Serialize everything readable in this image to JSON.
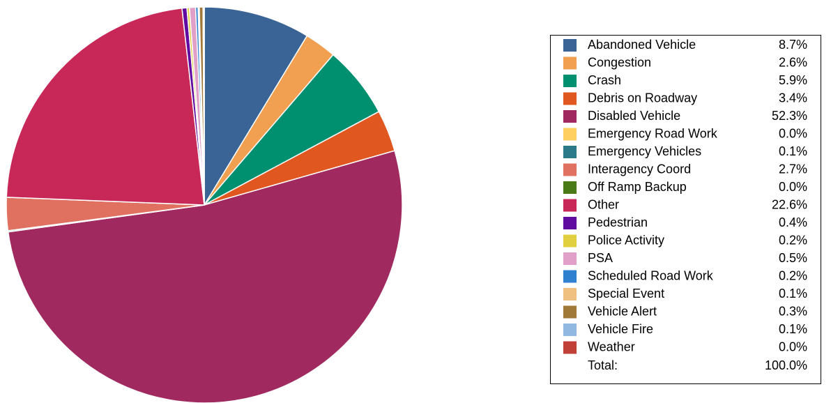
{
  "chart_data": {
    "type": "pie",
    "categories": [
      "Abandoned Vehicle",
      "Congestion",
      "Crash",
      "Debris on Roadway",
      "Disabled Vehicle",
      "Emergency Road Work",
      "Emergency Vehicles",
      "Interagency Coord",
      "Off Ramp Backup",
      "Other",
      "Pedestrian",
      "Police Activity",
      "PSA",
      "Scheduled Road Work",
      "Special Event",
      "Vehicle Alert",
      "Vehicle Fire",
      "Weather"
    ],
    "values": [
      8.7,
      2.6,
      5.9,
      3.4,
      52.3,
      0.0,
      0.1,
      2.7,
      0.0,
      22.6,
      0.4,
      0.2,
      0.5,
      0.2,
      0.1,
      0.3,
      0.1,
      0.0
    ],
    "value_labels": [
      "8.7%",
      "2.6%",
      "5.9%",
      "3.4%",
      "52.3%",
      "0.0%",
      "0.1%",
      "2.7%",
      "0.0%",
      "22.6%",
      "0.4%",
      "0.2%",
      "0.5%",
      "0.2%",
      "0.1%",
      "0.3%",
      "0.1%",
      "0.0%"
    ],
    "colors": [
      "#3a6496",
      "#f0a050",
      "#009070",
      "#e05820",
      "#a02a60",
      "#ffd060",
      "#2a7a8a",
      "#e07060",
      "#4a7a18",
      "#c82858",
      "#600ca0",
      "#e0d040",
      "#e0a0c8",
      "#3080d0",
      "#f0c080",
      "#a07838",
      "#90b8e0",
      "#c04038"
    ],
    "total": {
      "label": "Total:",
      "value": 100,
      "value_label": "100.0%"
    },
    "legend": "right"
  }
}
